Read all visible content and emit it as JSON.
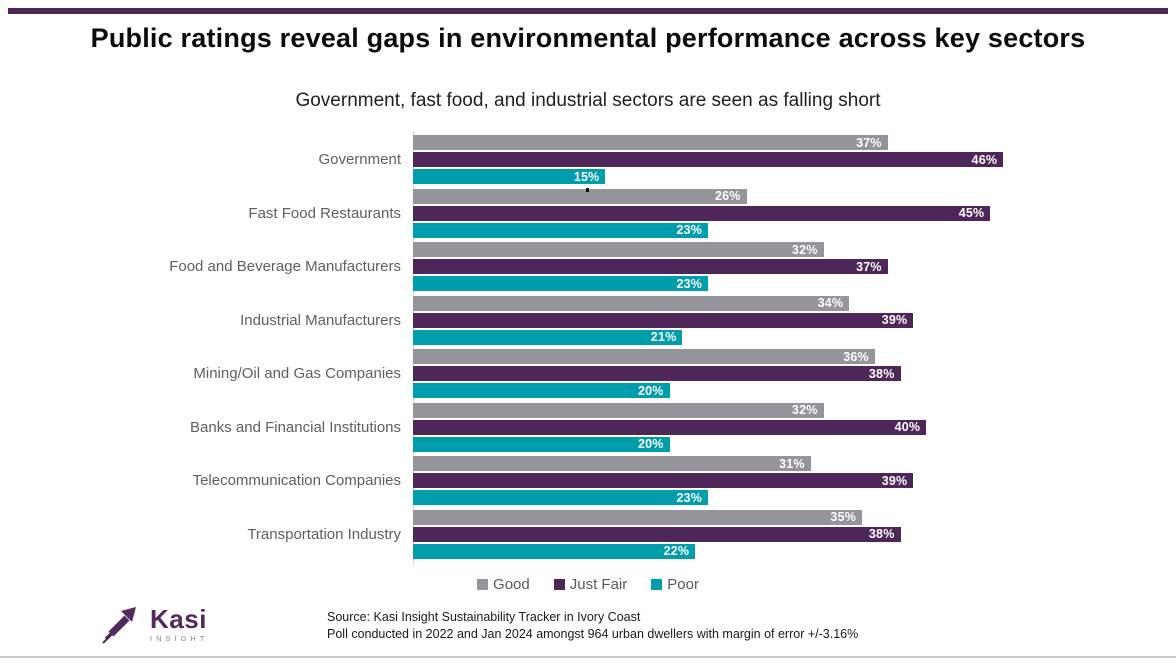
{
  "header": {
    "title": "Public ratings reveal gaps in environmental performance across key sectors",
    "subtitle": "Government, fast food, and industrial sectors are seen as falling short"
  },
  "chart_data": {
    "type": "bar",
    "orientation": "horizontal",
    "title": "Public ratings reveal gaps in environmental performance across key sectors",
    "subtitle": "Government, fast food, and industrial sectors are seen as falling short",
    "categories": [
      "Government",
      "Fast Food Restaurants",
      "Food and Beverage Manufacturers",
      "Industrial Manufacturers",
      "Mining/Oil and Gas Companies",
      "Banks and Financial Institutions",
      "Telecommunication Companies",
      "Transportation Industry"
    ],
    "series": [
      {
        "name": "Good",
        "color": "#95949A",
        "values": [
          37,
          26,
          32,
          34,
          36,
          32,
          31,
          35
        ]
      },
      {
        "name": "Just Fair",
        "color": "#4F2659",
        "values": [
          46,
          45,
          37,
          39,
          38,
          40,
          39,
          38
        ]
      },
      {
        "name": "Poor",
        "color": "#009DAC",
        "values": [
          15,
          23,
          23,
          21,
          20,
          20,
          23,
          22
        ]
      }
    ],
    "value_suffix": "%",
    "xlim": [
      0,
      47
    ],
    "grid": false,
    "legend_position": "bottom",
    "axis_line_color": "#d9d9d9",
    "category_label_color": "#5f5f5f",
    "value_label_color": "#ffffff"
  },
  "accent": {
    "top_rule_color": "#4F2658",
    "bottom_rule_color": "#c9c9c9",
    "brand_purple": "#532a5e"
  },
  "footer": {
    "logo_brand": "Kasi",
    "logo_sub": "INSIGHT",
    "source_line1": "Source: Kasi Insight Sustainability Tracker in Ivory Coast",
    "source_line2": "Poll  conducted in 2022 and Jan 2024 amongst 964 urban dwellers with margin of error +/-3.16%"
  }
}
